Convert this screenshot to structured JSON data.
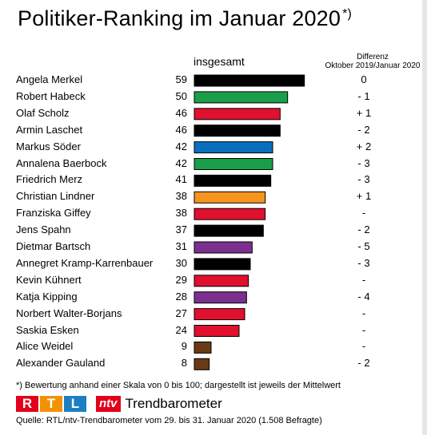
{
  "title": "Politiker-Ranking im Januar 2020",
  "title_mark": "*)",
  "header": {
    "overall": "insgesamt",
    "diff_line1": "Differenz",
    "diff_line2": "Oktober 2019/Januar 2020"
  },
  "chart_data": {
    "type": "bar",
    "orientation": "horizontal",
    "xlim": [
      0,
      100
    ],
    "categories": [
      "Angela Merkel",
      "Robert Habeck",
      "Olaf Scholz",
      "Armin Laschet",
      "Markus Söder",
      "Annalena Baerbock",
      "Friedrich Merz",
      "Christian Lindner",
      "Franziska Giffey",
      "Jens Spahn",
      "Dietmar Bartsch",
      "Annegret Kramp-Karrenbauer",
      "Kevin Kühnert",
      "Katja Kipping",
      "Norbert Walter-Borjans",
      "Saskia Esken",
      "Alice Weidel",
      "Alexander Gauland"
    ],
    "values": [
      59,
      50,
      46,
      46,
      42,
      42,
      41,
      38,
      38,
      37,
      31,
      30,
      29,
      28,
      27,
      24,
      9,
      8
    ],
    "diff": [
      "0",
      "- 1",
      "+ 1",
      "- 2",
      "+ 2",
      "- 3",
      "- 3",
      "+ 1",
      "-",
      "- 2",
      "- 5",
      "- 3",
      "-",
      "- 4",
      "-",
      "-",
      "-",
      "- 2"
    ],
    "colors": [
      "#000000",
      "#1a9e4a",
      "#e0102e",
      "#000000",
      "#0a6ebd",
      "#1a9e4a",
      "#000000",
      "#f7941d",
      "#e0102e",
      "#000000",
      "#7b2f8f",
      "#000000",
      "#e0102e",
      "#7b2f8f",
      "#e0102e",
      "#e0102e",
      "#6b3a12",
      "#6b3a12"
    ]
  },
  "footnote": "*) Bewertung anhand einer Skala von 0 bis 100; dargestellt ist jeweils der Mittelwert",
  "logo": {
    "rtl": [
      "R",
      "T",
      "L"
    ],
    "rtl_colors": [
      "#e2001a",
      "#f39200",
      "#1d7fc1"
    ],
    "ntv": "ntv",
    "brand_text": "Trendbarometer"
  },
  "source": "Quelle: RTL/ntv-Trendbarometer vom 29. bis 31. Januar 2020 (1.508 Befragte)"
}
